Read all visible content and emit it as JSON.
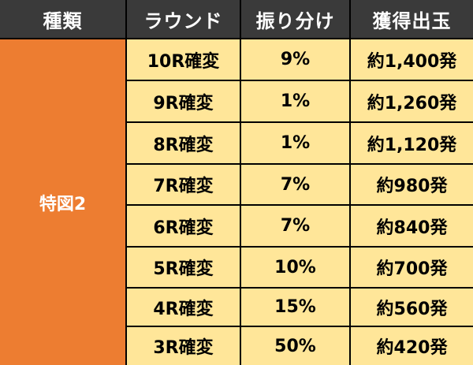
{
  "header": {
    "type": "種類",
    "round": "ラウンド",
    "ratio": "振り分け",
    "payout": "獲得出玉"
  },
  "type_label": "特図2",
  "rows": [
    {
      "round": "10R確変",
      "ratio": "9%",
      "payout": "約1,400発"
    },
    {
      "round": "9R確変",
      "ratio": "1%",
      "payout": "約1,260発"
    },
    {
      "round": "8R確変",
      "ratio": "1%",
      "payout": "約1,120発"
    },
    {
      "round": "7R確変",
      "ratio": "7%",
      "payout": "約980発"
    },
    {
      "round": "6R確変",
      "ratio": "7%",
      "payout": "約840発"
    },
    {
      "round": "5R確変",
      "ratio": "10%",
      "payout": "約700発"
    },
    {
      "round": "4R確変",
      "ratio": "15%",
      "payout": "約560発"
    },
    {
      "round": "3R確変",
      "ratio": "50%",
      "payout": "約420発"
    }
  ],
  "colors": {
    "header_bg": "#3a3a3a",
    "type_bg": "#ed7d31",
    "cell_bg": "#ffe699",
    "border": "#000000"
  }
}
